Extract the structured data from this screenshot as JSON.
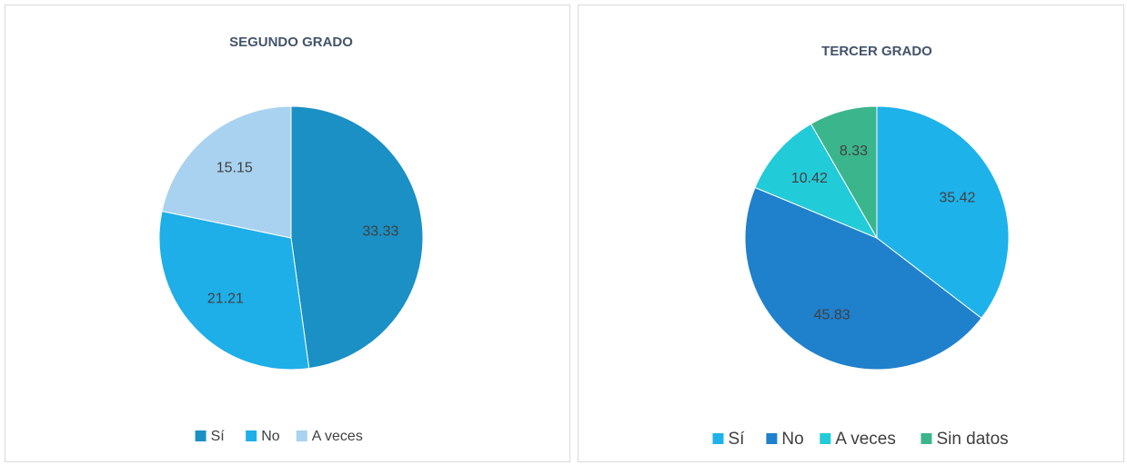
{
  "chart_data": [
    {
      "type": "pie",
      "title": "SEGUNDO GRADO",
      "categories": [
        "Sí",
        "No",
        "A veces"
      ],
      "values": [
        33.33,
        21.21,
        15.15
      ],
      "colors": [
        "#1a90c4",
        "#1eaee8",
        "#a8d2f0"
      ]
    },
    {
      "type": "pie",
      "title": "TERCER GRADO",
      "categories": [
        "Sí",
        "No",
        "A veces",
        "Sin datos"
      ],
      "values": [
        35.42,
        45.83,
        10.42,
        8.33
      ],
      "colors": [
        "#1db2ea",
        "#1f80cc",
        "#22cbd8",
        "#3bb58c"
      ]
    }
  ]
}
